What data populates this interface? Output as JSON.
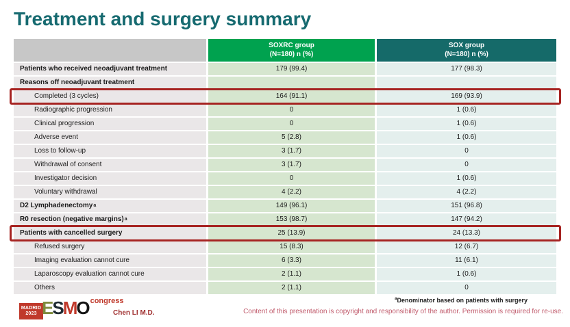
{
  "slide": {
    "title": "Treatment and surgery summary"
  },
  "table": {
    "columns": [
      {
        "label": "",
        "sublabel": ""
      },
      {
        "label": "SOXRC group",
        "sublabel": "(N=180)  n (%)"
      },
      {
        "label": "SOX group",
        "sublabel": "(N=180)  n (%)"
      }
    ],
    "rows": [
      {
        "label": "Patients who received neoadjuvant treatment",
        "soxrc": "179 (99.4)",
        "sox": "177 (98.3)",
        "bold": true
      },
      {
        "label": "Reasons off neoadjuvant treatment",
        "soxrc": "",
        "sox": "",
        "bold": true
      },
      {
        "label": "Completed (3 cycles)",
        "soxrc": "164 (91.1)",
        "sox": "169 (93.9)",
        "indent": true,
        "highlight": true
      },
      {
        "label": "Radiographic progression",
        "soxrc": "0",
        "sox": "1 (0.6)",
        "indent": true
      },
      {
        "label": "Clinical progression",
        "soxrc": "0",
        "sox": "1 (0.6)",
        "indent": true
      },
      {
        "label": "Adverse event",
        "soxrc": "5 (2.8)",
        "sox": "1 (0.6)",
        "indent": true
      },
      {
        "label": "Loss to follow-up",
        "soxrc": "3 (1.7)",
        "sox": "0",
        "indent": true
      },
      {
        "label": "Withdrawal of consent",
        "soxrc": "3 (1.7)",
        "sox": "0",
        "indent": true
      },
      {
        "label": "Investigator decision",
        "soxrc": "0",
        "sox": "1 (0.6)",
        "indent": true
      },
      {
        "label": "Voluntary withdrawal",
        "soxrc": "4 (2.2)",
        "sox": "4 (2.2)",
        "indent": true
      },
      {
        "label": "D2 Lymphadenectomy",
        "sup": "a",
        "soxrc": "149 (96.1)",
        "sox": "151 (96.8)",
        "bold": true
      },
      {
        "label": "R0 resection (negative margins)",
        "sup": "a",
        "soxrc": "153 (98.7)",
        "sox": "147 (94.2)",
        "bold": true
      },
      {
        "label": "Patients with cancelled surgery",
        "soxrc": "25 (13.9)",
        "sox": "24 (13.3)",
        "bold": true,
        "highlight": true
      },
      {
        "label": "Refused surgery",
        "soxrc": "15 (8.3)",
        "sox": "12 (6.7)",
        "indent": true
      },
      {
        "label": "Imaging evaluation cannot cure",
        "soxrc": "6 (3.3)",
        "sox": "11 (6.1)",
        "indent": true
      },
      {
        "label": "Laparoscopy evaluation cannot cure",
        "soxrc": "2 (1.1)",
        "sox": "1 (0.6)",
        "indent": true
      },
      {
        "label": "Others",
        "soxrc": "2 (1.1)",
        "sox": "0",
        "indent": true
      }
    ]
  },
  "footer": {
    "footnote_sup": "a",
    "footnote": "Denominator based on patients with surgery",
    "author": "Chen LI M.D.",
    "copyright": "Content of this presentation is copyright and responsibility of the author. Permission is required for re-use.",
    "logo": {
      "city": "MADRID",
      "year": "2023",
      "letters": [
        "E",
        "S",
        "M",
        "O"
      ],
      "suffix": "congress"
    }
  },
  "colors": {
    "title": "#166a70",
    "header_green": "#00a24f",
    "header_teal": "#156a69",
    "header_gray": "#c7c7c7",
    "label_cell": "#eae7e8",
    "soxrc_cell": "#d6e6cf",
    "sox_cell": "#e4efed",
    "highlight_red": "#a62321",
    "copyright_text": "#c05a6b",
    "author_text": "#a03030"
  }
}
